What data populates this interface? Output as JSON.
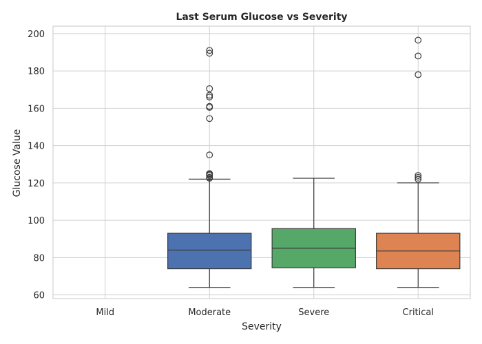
{
  "chart_data": {
    "type": "box",
    "title": "Last Serum Glucose vs Severity",
    "xlabel": "Severity",
    "ylabel": "Glucose Value",
    "ylim": [
      58,
      204
    ],
    "yticks": [
      60,
      80,
      100,
      120,
      140,
      160,
      180,
      200
    ],
    "grid": true,
    "categories": [
      "Mild",
      "Moderate",
      "Severe",
      "Critical"
    ],
    "colors": [
      "#4c72b0",
      "#4c72b0",
      "#55a868",
      "#dd8452"
    ],
    "boxes": [
      null,
      {
        "whisker_low": 64,
        "q1": 74,
        "median": 84,
        "q3": 93,
        "whisker_high": 122,
        "fliers": [
          191,
          189.5,
          170.5,
          167,
          166,
          161,
          160.5,
          154.5,
          135,
          125,
          124.5,
          124,
          123,
          122.5
        ]
      },
      {
        "whisker_low": 64,
        "q1": 74.5,
        "median": 85,
        "q3": 95.5,
        "whisker_high": 122.5,
        "fliers": []
      },
      {
        "whisker_low": 64,
        "q1": 74,
        "median": 83.5,
        "q3": 93,
        "whisker_high": 120,
        "fliers": [
          196.5,
          188,
          178,
          124,
          123,
          122
        ]
      }
    ]
  }
}
